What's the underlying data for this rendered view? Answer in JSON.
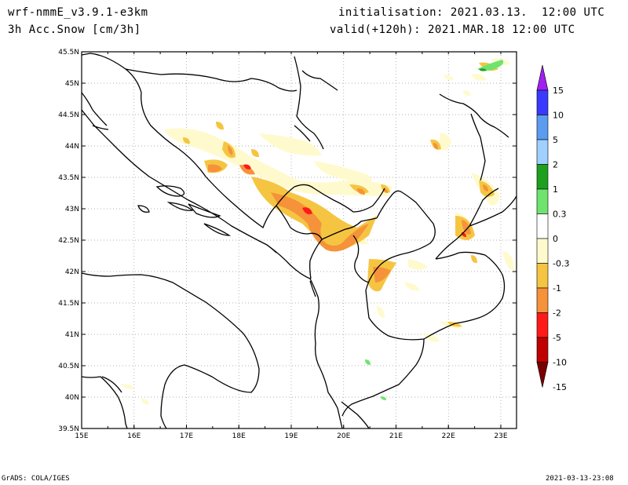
{
  "header": {
    "model": "wrf-nmmE_v3.9.1-e3km",
    "field": "3h Acc.Snow [cm/3h]",
    "init": "initialisation: 2021.03.13.  12:00 UTC",
    "valid": "valid(+120h): 2021.MAR.18 12:00 UTC"
  },
  "footer": {
    "left": "GrADS: COLA/IGES",
    "right": "2021-03-13-23:08"
  },
  "map": {
    "lon_labels": [
      "15E",
      "16E",
      "17E",
      "18E",
      "19E",
      "20E",
      "21E",
      "22E",
      "23E"
    ],
    "lat_labels": [
      "39.5N",
      "40N",
      "40.5N",
      "41N",
      "41.5N",
      "42N",
      "42.5N",
      "43N",
      "43.5N",
      "44N",
      "44.5N",
      "45N",
      "45.5N"
    ],
    "lon_range": [
      15,
      23.3
    ],
    "lat_range": [
      39.5,
      45.5
    ]
  },
  "colorbar": {
    "labels": [
      "15",
      "10",
      "5",
      "2",
      "1",
      "0.3",
      "0",
      "-0.3",
      "-1",
      "-2",
      "-5",
      "-10",
      "-15"
    ],
    "colors": [
      "#a020f0",
      "#3a3aff",
      "#5b9cf0",
      "#9fd0ff",
      "#1ea01e",
      "#6ee46e",
      "#ffffff",
      "#fffacd",
      "#f5c542",
      "#f5923a",
      "#ff1a1a",
      "#c00000",
      "#7a0000"
    ]
  }
}
